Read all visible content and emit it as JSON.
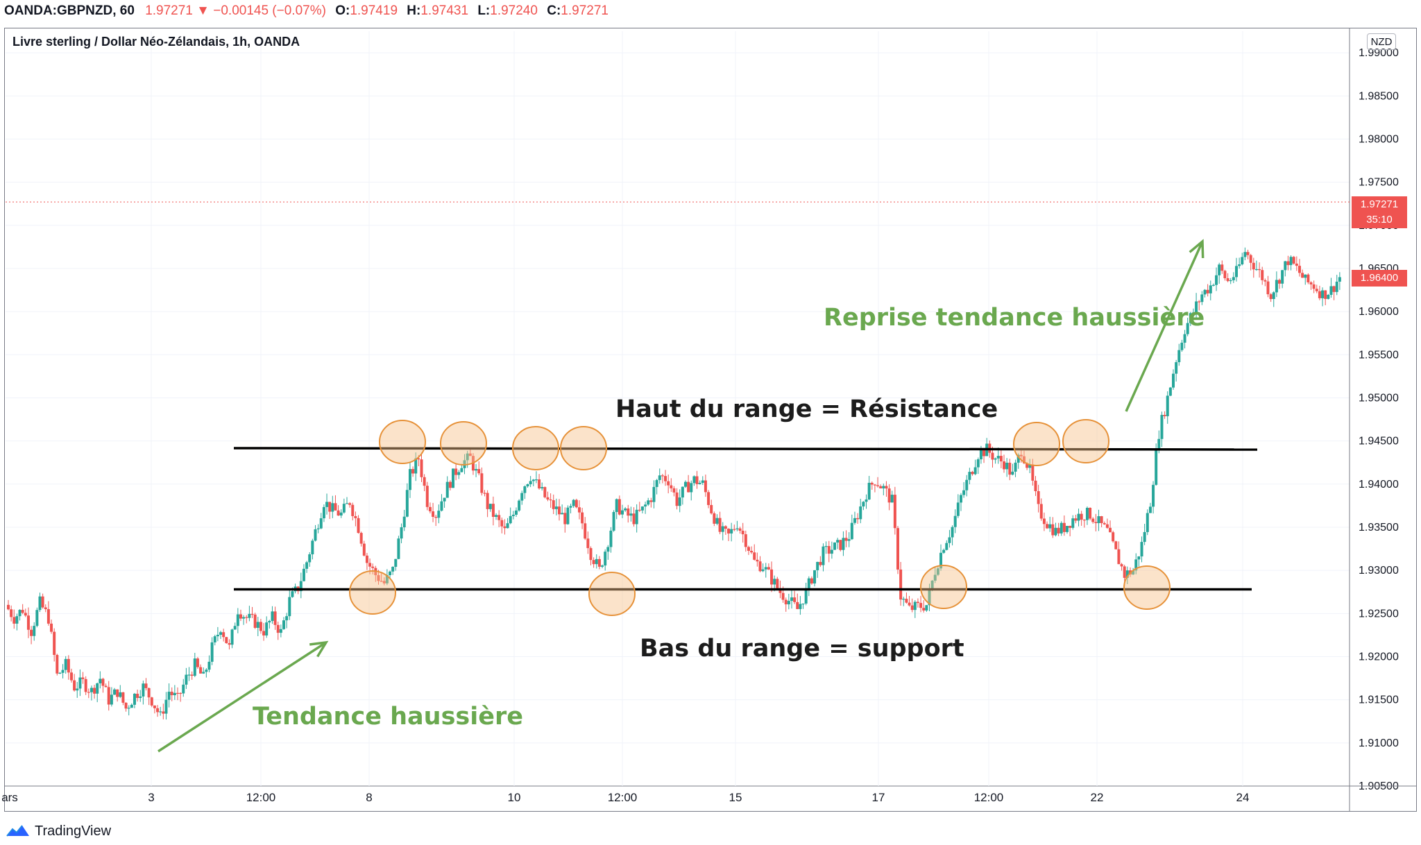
{
  "header": {
    "symbol": "OANDA:GBPNZD, 60",
    "last": "1.97271",
    "change": "−0.00145 (−0.07%)",
    "open_label": "O:",
    "open": "1.97419",
    "high_label": "H:",
    "high": "1.97431",
    "low_label": "L:",
    "low": "1.97240",
    "close_label": "C:",
    "close": "1.97271"
  },
  "chart_title": "Livre sterling / Dollar Néo-Zélandais, 1h, OANDA",
  "currency": "NZD",
  "footer": {
    "brand": "TradingView"
  },
  "price_tags": {
    "last_price": "1.97271",
    "countdown": "35:10",
    "marker_price": "1.96400"
  },
  "colors": {
    "up": "#26a69a",
    "down": "#ef5350",
    "annotation_green": "#6aa84f",
    "highlight_fill": "#f6c289",
    "highlight_stroke": "#e69138"
  },
  "chart_data": {
    "type": "candlestick",
    "ylim": [
      1.905,
      1.9925
    ],
    "y_ticks": [
      "1.99000",
      "1.98500",
      "1.98000",
      "1.97500",
      "1.97000",
      "1.96500",
      "1.96000",
      "1.95500",
      "1.95000",
      "1.94500",
      "1.94000",
      "1.93500",
      "1.93000",
      "1.92500",
      "1.92000",
      "1.91500",
      "1.91000",
      "1.90500"
    ],
    "x_ticks": [
      "ars",
      "3",
      "12:00",
      "8",
      "10",
      "12:00",
      "15",
      "17",
      "12:00",
      "22",
      "24"
    ],
    "close_path": [
      1.926,
      1.9245,
      1.9255,
      1.923,
      1.9262,
      1.9245,
      1.9178,
      1.919,
      1.9165,
      1.917,
      1.916,
      1.9175,
      1.915,
      1.916,
      1.914,
      1.9155,
      1.9165,
      1.915,
      1.913,
      1.916,
      1.915,
      1.9175,
      1.919,
      1.9175,
      1.921,
      1.9235,
      1.921,
      1.9255,
      1.9245,
      1.924,
      1.923,
      1.9245,
      1.9228,
      1.9265,
      1.928,
      1.931,
      1.9345,
      1.938,
      1.937,
      1.9365,
      1.938,
      1.935,
      1.931,
      1.9295,
      1.9285,
      1.93,
      1.935,
      1.941,
      1.943,
      1.938,
      1.9365,
      1.939,
      1.941,
      1.9425,
      1.943,
      1.9405,
      1.9375,
      1.936,
      1.9345,
      1.9365,
      1.9395,
      1.941,
      1.9395,
      1.938,
      1.937,
      1.936,
      1.9375,
      1.9355,
      1.932,
      1.93,
      1.9335,
      1.9375,
      1.9365,
      1.936,
      1.937,
      1.9385,
      1.941,
      1.9405,
      1.938,
      1.9395,
      1.9405,
      1.94,
      1.937,
      1.9345,
      1.934,
      1.9355,
      1.9335,
      1.931,
      1.9305,
      1.929,
      1.9275,
      1.9265,
      1.9255,
      1.9275,
      1.93,
      1.932,
      1.9325,
      1.933,
      1.934,
      1.9365,
      1.939,
      1.9405,
      1.9395,
      1.938,
      1.927,
      1.9255,
      1.9258,
      1.926,
      1.93,
      1.933,
      1.935,
      1.9385,
      1.941,
      1.9435,
      1.944,
      1.943,
      1.9425,
      1.941,
      1.944,
      1.9415,
      1.937,
      1.9355,
      1.9345,
      1.935,
      1.936,
      1.9365,
      1.9365,
      1.9355,
      1.9345,
      1.932,
      1.9295,
      1.93,
      1.933,
      1.938,
      1.946,
      1.95,
      1.9545,
      1.958,
      1.96,
      1.962,
      1.963,
      1.965,
      1.9635,
      1.9645,
      1.967,
      1.9655,
      1.964,
      1.962,
      1.964,
      1.966,
      1.965,
      1.9635,
      1.963,
      1.962,
      1.9625,
      1.964
    ],
    "support": 1.9278,
    "resistance": 1.944,
    "current_price": 1.97271,
    "marker_price": 1.964,
    "annotations": {
      "uptrend": "Tendance haussière",
      "resistance": "Haut du range = Résistance",
      "support": "Bas du range = support",
      "resume": "Reprise tendance haussière"
    }
  }
}
